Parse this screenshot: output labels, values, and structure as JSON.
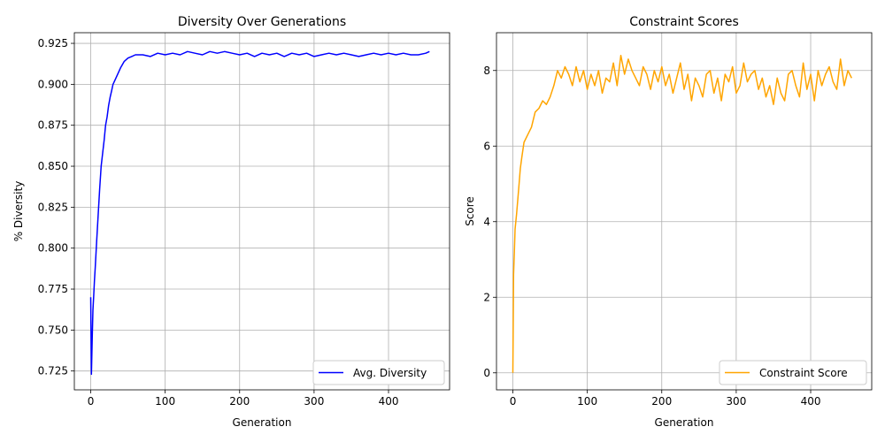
{
  "chart_data": [
    {
      "type": "line",
      "title": "Diversity Over Generations",
      "xlabel": "Generation",
      "ylabel": "% Diversity",
      "xlim": [
        -22,
        482
      ],
      "ylim": [
        0.7135,
        0.9315
      ],
      "xticks": [
        0,
        100,
        200,
        300,
        400
      ],
      "xtick_labels": [
        "0",
        "100",
        "200",
        "300",
        "400"
      ],
      "yticks": [
        0.725,
        0.75,
        0.775,
        0.8,
        0.825,
        0.85,
        0.875,
        0.9,
        0.925
      ],
      "ytick_labels": [
        "0.725",
        "0.750",
        "0.775",
        "0.800",
        "0.825",
        "0.850",
        "0.875",
        "0.900",
        "0.925"
      ],
      "grid": true,
      "legend_position": "lower right",
      "series": [
        {
          "name": "Avg. Diversity",
          "color": "#0000ff",
          "x": [
            0,
            1,
            2,
            3,
            4,
            5,
            6,
            8,
            10,
            12,
            14,
            16,
            18,
            20,
            22,
            24,
            26,
            28,
            30,
            33,
            36,
            40,
            45,
            50,
            55,
            60,
            70,
            80,
            90,
            100,
            110,
            120,
            130,
            140,
            150,
            160,
            170,
            180,
            190,
            200,
            210,
            220,
            230,
            240,
            250,
            260,
            270,
            280,
            290,
            300,
            310,
            320,
            330,
            340,
            350,
            360,
            370,
            380,
            390,
            400,
            410,
            420,
            430,
            440,
            450,
            455
          ],
          "y": [
            0.77,
            0.723,
            0.745,
            0.762,
            0.771,
            0.78,
            0.788,
            0.804,
            0.82,
            0.836,
            0.85,
            0.858,
            0.866,
            0.875,
            0.88,
            0.887,
            0.892,
            0.896,
            0.9,
            0.903,
            0.906,
            0.91,
            0.914,
            0.916,
            0.917,
            0.918,
            0.918,
            0.917,
            0.919,
            0.918,
            0.919,
            0.918,
            0.92,
            0.919,
            0.918,
            0.92,
            0.919,
            0.92,
            0.919,
            0.918,
            0.919,
            0.917,
            0.919,
            0.918,
            0.919,
            0.917,
            0.919,
            0.918,
            0.919,
            0.917,
            0.918,
            0.919,
            0.918,
            0.919,
            0.918,
            0.917,
            0.918,
            0.919,
            0.918,
            0.919,
            0.918,
            0.919,
            0.918,
            0.918,
            0.919,
            0.92
          ]
        }
      ]
    },
    {
      "type": "line",
      "title": "Constraint Scores",
      "xlabel": "Generation",
      "ylabel": "Score",
      "xlim": [
        -22,
        482
      ],
      "ylim": [
        -0.45,
        9.0
      ],
      "xticks": [
        0,
        100,
        200,
        300,
        400
      ],
      "xtick_labels": [
        "0",
        "100",
        "200",
        "300",
        "400"
      ],
      "yticks": [
        0,
        2,
        4,
        6,
        8
      ],
      "ytick_labels": [
        "0",
        "2",
        "4",
        "6",
        "8"
      ],
      "grid": true,
      "legend_position": "lower right",
      "series": [
        {
          "name": "Constraint Score",
          "color": "#ffa500",
          "x": [
            0,
            1,
            2,
            3,
            5,
            8,
            10,
            12,
            15,
            20,
            25,
            30,
            35,
            40,
            45,
            50,
            55,
            60,
            65,
            70,
            75,
            80,
            85,
            90,
            95,
            100,
            105,
            110,
            115,
            120,
            125,
            130,
            135,
            140,
            145,
            150,
            155,
            160,
            165,
            170,
            175,
            180,
            185,
            190,
            195,
            200,
            205,
            210,
            215,
            220,
            225,
            230,
            235,
            240,
            245,
            250,
            255,
            260,
            265,
            270,
            275,
            280,
            285,
            290,
            295,
            300,
            305,
            310,
            315,
            320,
            325,
            330,
            335,
            340,
            345,
            350,
            355,
            360,
            365,
            370,
            375,
            380,
            385,
            390,
            395,
            400,
            405,
            410,
            415,
            420,
            425,
            430,
            435,
            440,
            445,
            450,
            455
          ],
          "y": [
            0.0,
            2.6,
            3.2,
            3.8,
            4.2,
            4.9,
            5.4,
            5.7,
            6.1,
            6.3,
            6.5,
            6.9,
            7.0,
            7.2,
            7.1,
            7.3,
            7.6,
            8.0,
            7.8,
            8.1,
            7.9,
            7.6,
            8.1,
            7.7,
            8.0,
            7.5,
            7.9,
            7.6,
            8.0,
            7.4,
            7.8,
            7.7,
            8.2,
            7.6,
            8.4,
            7.9,
            8.3,
            8.0,
            7.8,
            7.6,
            8.1,
            7.9,
            7.5,
            8.0,
            7.7,
            8.1,
            7.6,
            7.9,
            7.4,
            7.8,
            8.2,
            7.5,
            7.9,
            7.2,
            7.8,
            7.6,
            7.3,
            7.9,
            8.0,
            7.4,
            7.8,
            7.2,
            7.9,
            7.7,
            8.1,
            7.4,
            7.6,
            8.2,
            7.7,
            7.9,
            8.0,
            7.5,
            7.8,
            7.3,
            7.6,
            7.1,
            7.8,
            7.4,
            7.2,
            7.9,
            8.0,
            7.6,
            7.3,
            8.2,
            7.5,
            7.9,
            7.2,
            8.0,
            7.6,
            7.9,
            8.1,
            7.7,
            7.5,
            8.3,
            7.6,
            8.0,
            7.8
          ]
        }
      ]
    }
  ]
}
